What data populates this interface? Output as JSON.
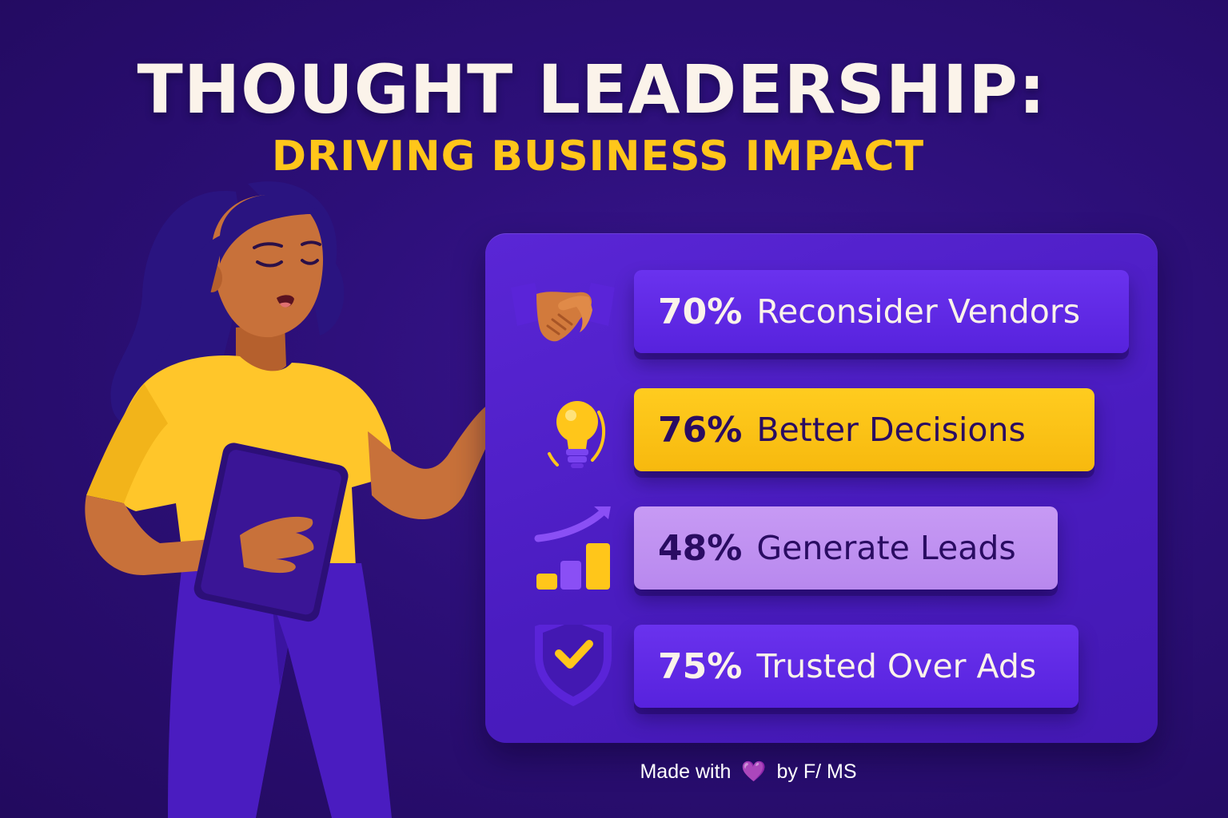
{
  "title": "THOUGHT LEADERSHIP:",
  "subtitle": "DRIVING BUSINESS IMPACT",
  "colors": {
    "background": "#2c0f78",
    "panel": "#4a1cc0",
    "title": "#fbf3ea",
    "subtitle": "#ffc61a",
    "accent_yellow": "#ffc61a",
    "card_purple": "#5f28e6",
    "card_lilac": "#c096f2",
    "skin": "#c8713a",
    "shirt": "#ffc62a"
  },
  "stats": [
    {
      "percent": "70%",
      "label": "Reconsider Vendors",
      "icon": "handshake-icon",
      "style": "purple"
    },
    {
      "percent": "76%",
      "label": "Better Decisions",
      "icon": "lightbulb-icon",
      "style": "yellow"
    },
    {
      "percent": "48%",
      "label": "Generate Leads",
      "icon": "growth-chart-icon",
      "style": "lilac"
    },
    {
      "percent": "75%",
      "label": "Trusted Over Ads",
      "icon": "shield-check-icon",
      "style": "purple"
    }
  ],
  "footer": {
    "prefix": "Made with",
    "heart": "💜",
    "suffix": "by F/ MS"
  },
  "illustration": "presenter-woman-with-tablet"
}
